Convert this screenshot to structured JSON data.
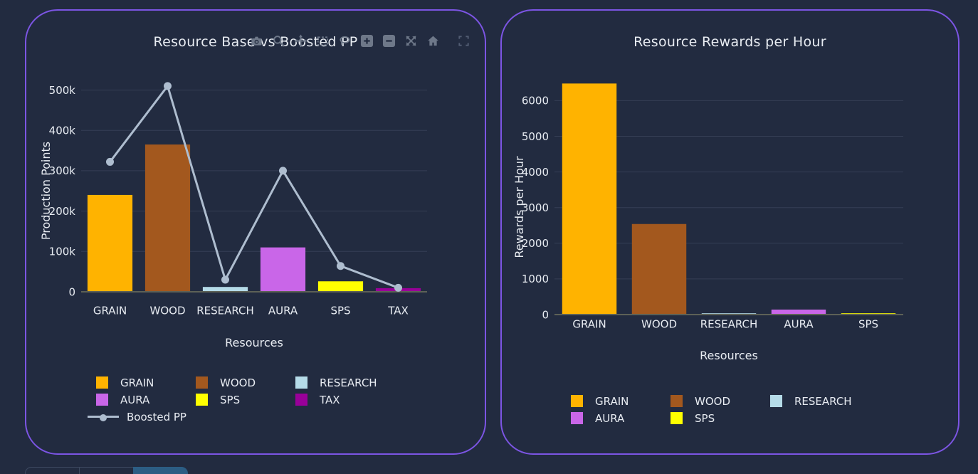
{
  "theme": {
    "background": "#222b40",
    "card_border": "#7c55e4",
    "text": "#e8ecf2",
    "grid": "#353e55",
    "axis_line": "#5d6156",
    "modebar_icon": "#6e7889",
    "active_tab": "#2c5d84",
    "tab_border": "#3d4960"
  },
  "left_card": {
    "title": "Resource Base vs Boosted PP",
    "modebar_icons": [
      "camera",
      "zoom",
      "pan",
      "box-select",
      "lasso",
      "zoom-in",
      "zoom-out",
      "autoscale",
      "home",
      "fullscreen"
    ]
  },
  "right_card": {
    "title": "Resource Rewards per Hour"
  },
  "bottom_tabs": {
    "visible_count": 3,
    "active_index": 2
  },
  "chart_data": [
    {
      "type": "bar",
      "title": "Resource Base vs Boosted PP",
      "xlabel": "Resources",
      "ylabel": "Production Points",
      "categories": [
        "GRAIN",
        "WOOD",
        "RESEARCH",
        "AURA",
        "SPS",
        "TAX"
      ],
      "bar_values": [
        240000,
        365000,
        12000,
        110000,
        26000,
        9000
      ],
      "bar_colors": [
        "#ffb300",
        "#a3581e",
        "#b5dbe8",
        "#c966e8",
        "#ffff00",
        "#990099"
      ],
      "line_series": {
        "name": "Boosted PP",
        "values": [
          322000,
          510000,
          30000,
          300000,
          64000,
          10000
        ],
        "color": "#aebdcf"
      },
      "ylim": [
        0,
        545000
      ],
      "yticks": [
        0,
        100000,
        200000,
        300000,
        400000,
        500000
      ],
      "ytick_labels": [
        "0",
        "100k",
        "200k",
        "300k",
        "400k",
        "500k"
      ],
      "legend_entries": [
        "GRAIN",
        "WOOD",
        "RESEARCH",
        "AURA",
        "SPS",
        "TAX",
        "Boosted PP"
      ],
      "legend_position": "bottom",
      "grid": true
    },
    {
      "type": "bar",
      "title": "Resource Rewards per Hour",
      "xlabel": "Resources",
      "ylabel": "Rewards per Hour",
      "categories": [
        "GRAIN",
        "WOOD",
        "RESEARCH",
        "AURA",
        "SPS"
      ],
      "bar_values": [
        6480,
        2540,
        15,
        140,
        25
      ],
      "bar_colors": [
        "#ffb300",
        "#a3581e",
        "#b5dbe8",
        "#c966e8",
        "#ffff00"
      ],
      "ylim": [
        0,
        6800
      ],
      "yticks": [
        0,
        1000,
        2000,
        3000,
        4000,
        5000,
        6000
      ],
      "ytick_labels": [
        "0",
        "1000",
        "2000",
        "3000",
        "4000",
        "5000",
        "6000"
      ],
      "legend_entries": [
        "GRAIN",
        "WOOD",
        "RESEARCH",
        "AURA",
        "SPS"
      ],
      "legend_position": "bottom",
      "grid": true
    }
  ]
}
